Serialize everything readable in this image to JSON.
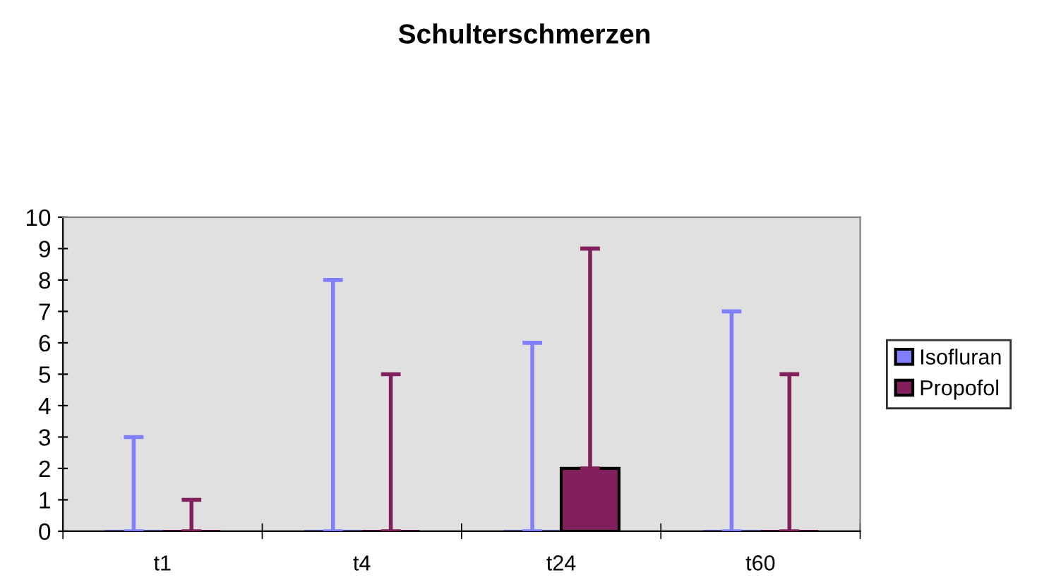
{
  "chart_data": {
    "type": "bar",
    "title": "Schulterschmerzen",
    "categories": [
      "t1",
      "t4",
      "t24",
      "t60"
    ],
    "series": [
      {
        "name": "Isofluran",
        "color": "#8080ff",
        "values": [
          0,
          0,
          0,
          0
        ],
        "errors": [
          [
            0,
            3
          ],
          [
            0,
            8
          ],
          [
            0,
            6
          ],
          [
            0,
            7
          ]
        ]
      },
      {
        "name": "Propofol",
        "color": "#82205e",
        "values": [
          0,
          0,
          2,
          0
        ],
        "errors": [
          [
            0,
            1
          ],
          [
            0,
            5
          ],
          [
            2,
            9
          ],
          [
            0,
            5
          ]
        ]
      }
    ],
    "ylim": [
      0,
      10
    ],
    "yticks": [
      0,
      1,
      2,
      3,
      4,
      5,
      6,
      7,
      8,
      9,
      10
    ],
    "grid": false,
    "legend": "right"
  }
}
